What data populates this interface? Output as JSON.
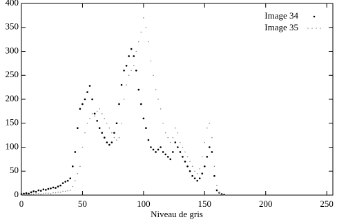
{
  "chart_data": {
    "type": "scatter",
    "xlabel": "Niveau de gris",
    "x": [
      0,
      2,
      4,
      6,
      8,
      10,
      12,
      14,
      16,
      18,
      20,
      22,
      24,
      26,
      28,
      30,
      32,
      34,
      36,
      38,
      40,
      42,
      44,
      46,
      48,
      50,
      52,
      54,
      56,
      58,
      60,
      62,
      64,
      66,
      68,
      70,
      72,
      74,
      76,
      78,
      80,
      82,
      84,
      86,
      88,
      90,
      92,
      94,
      96,
      98,
      100,
      102,
      104,
      106,
      108,
      110,
      112,
      114,
      116,
      118,
      120,
      122,
      124,
      126,
      128,
      130,
      132,
      134,
      136,
      138,
      140,
      142,
      144,
      146,
      148,
      150,
      152,
      154,
      156,
      158,
      160,
      162,
      164,
      166
    ],
    "series": [
      {
        "name": "Image 34",
        "color": "#000000",
        "values": [
          2,
          3,
          4,
          3,
          6,
          8,
          7,
          10,
          9,
          12,
          11,
          13,
          14,
          16,
          15,
          18,
          20,
          25,
          28,
          30,
          35,
          60,
          90,
          140,
          180,
          190,
          200,
          215,
          228,
          200,
          170,
          155,
          140,
          130,
          120,
          110,
          105,
          110,
          130,
          150,
          190,
          230,
          260,
          270,
          290,
          305,
          290,
          260,
          220,
          190,
          160,
          140,
          115,
          100,
          95,
          90,
          95,
          100,
          90,
          85,
          80,
          75,
          90,
          110,
          100,
          90,
          80,
          70,
          60,
          50,
          40,
          35,
          30,
          35,
          45,
          60,
          80,
          100,
          90,
          40,
          10,
          5,
          2,
          1
        ]
      },
      {
        "name": "Image 35",
        "color": "#888888",
        "values": [
          0,
          0,
          1,
          1,
          2,
          2,
          3,
          3,
          2,
          3,
          4,
          4,
          3,
          5,
          5,
          6,
          6,
          8,
          8,
          9,
          10,
          18,
          30,
          45,
          60,
          100,
          130,
          150,
          160,
          170,
          165,
          175,
          180,
          170,
          160,
          150,
          140,
          130,
          120,
          115,
          120,
          150,
          200,
          230,
          250,
          260,
          270,
          300,
          320,
          340,
          370,
          350,
          320,
          280,
          250,
          220,
          200,
          180,
          150,
          130,
          120,
          110,
          120,
          140,
          130,
          110,
          100,
          90,
          80,
          70,
          60,
          50,
          45,
          55,
          80,
          110,
          140,
          150,
          120,
          60,
          20,
          5,
          1,
          0
        ]
      }
    ],
    "xlim": [
      0,
      255
    ],
    "ylim": [
      0,
      400
    ],
    "xticks": [
      0,
      50,
      100,
      150,
      200,
      250
    ],
    "yticks": [
      0,
      50,
      100,
      150,
      200,
      250,
      300,
      350,
      400
    ],
    "legend": "upper right"
  }
}
